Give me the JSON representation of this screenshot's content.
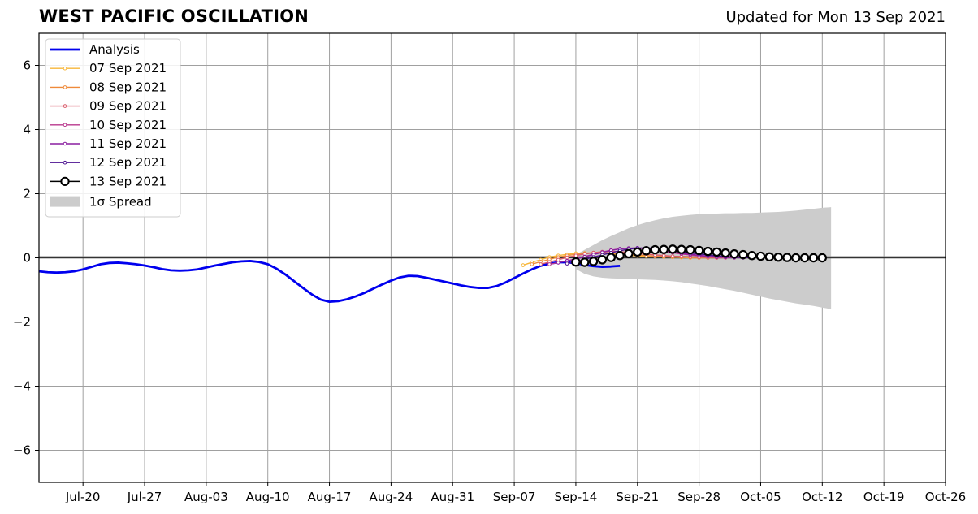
{
  "title": "WEST PACIFIC OSCILLATION",
  "subtitle": "Updated for Mon 13 Sep 2021",
  "chart_data": {
    "type": "line",
    "title": "WEST PACIFIC OSCILLATION",
    "xlabel": "",
    "ylabel": "",
    "x_range": [
      "2021-07-15",
      "2021-10-26"
    ],
    "ylim": [
      -7,
      7
    ],
    "grid": true,
    "legend_position": "top-left",
    "x_ticks": [
      "Jul-20",
      "Jul-27",
      "Aug-03",
      "Aug-10",
      "Aug-17",
      "Aug-24",
      "Aug-31",
      "Sep-07",
      "Sep-14",
      "Sep-21",
      "Sep-28",
      "Oct-05",
      "Oct-12",
      "Oct-19",
      "Oct-26"
    ],
    "x_tick_dates": [
      "2021-07-20",
      "2021-07-27",
      "2021-08-03",
      "2021-08-10",
      "2021-08-17",
      "2021-08-24",
      "2021-08-31",
      "2021-09-07",
      "2021-09-14",
      "2021-09-21",
      "2021-09-28",
      "2021-10-05",
      "2021-10-12",
      "2021-10-19",
      "2021-10-26"
    ],
    "y_ticks": [
      6,
      4,
      2,
      0,
      -2,
      -4,
      -6
    ],
    "y_tick_labels": [
      "6",
      "4",
      "2",
      "0",
      "−2",
      "−4",
      "−6"
    ],
    "series": [
      {
        "name": "Analysis",
        "color": "#0000ee",
        "start_date": "2021-07-15",
        "values": [
          -0.42,
          -0.45,
          -0.46,
          -0.45,
          -0.42,
          -0.36,
          -0.28,
          -0.2,
          -0.16,
          -0.15,
          -0.17,
          -0.2,
          -0.24,
          -0.29,
          -0.35,
          -0.39,
          -0.4,
          -0.39,
          -0.36,
          -0.3,
          -0.24,
          -0.19,
          -0.14,
          -0.11,
          -0.1,
          -0.13,
          -0.2,
          -0.34,
          -0.52,
          -0.73,
          -0.94,
          -1.14,
          -1.3,
          -1.37,
          -1.35,
          -1.29,
          -1.2,
          -1.09,
          -0.96,
          -0.83,
          -0.71,
          -0.61,
          -0.56,
          -0.57,
          -0.62,
          -0.68,
          -0.74,
          -0.8,
          -0.86,
          -0.91,
          -0.94,
          -0.94,
          -0.88,
          -0.77,
          -0.63,
          -0.49,
          -0.36,
          -0.25,
          -0.18,
          -0.14,
          -0.14,
          -0.17,
          -0.22,
          -0.26,
          -0.28,
          -0.27,
          -0.25
        ]
      },
      {
        "name": "07 Sep 2021",
        "color": "#f7b638",
        "start_date": "2021-09-08",
        "values": [
          -0.23,
          -0.14,
          -0.06,
          0.02,
          0.07,
          0.11,
          0.14,
          0.15,
          0.15,
          0.14,
          0.12,
          0.1,
          0.08,
          0.06,
          0.05,
          0.04,
          0.03,
          0.02,
          0.01,
          0.0,
          0.0,
          0.0
        ]
      },
      {
        "name": "08 Sep 2021",
        "color": "#ef8a3a",
        "start_date": "2021-09-09",
        "values": [
          -0.2,
          -0.12,
          -0.05,
          0.02,
          0.07,
          0.11,
          0.14,
          0.16,
          0.16,
          0.15,
          0.13,
          0.11,
          0.09,
          0.07,
          0.05,
          0.04,
          0.03,
          0.02,
          0.01,
          0.0,
          0.0,
          0.0
        ]
      },
      {
        "name": "09 Sep 2021",
        "color": "#da5a6a",
        "start_date": "2021-09-10",
        "values": [
          -0.2,
          -0.13,
          -0.06,
          0.01,
          0.07,
          0.12,
          0.16,
          0.19,
          0.2,
          0.19,
          0.17,
          0.14,
          0.12,
          0.09,
          0.07,
          0.05,
          0.04,
          0.03,
          0.02,
          0.01,
          0.0,
          0.0
        ]
      },
      {
        "name": "10 Sep 2021",
        "color": "#b8378c",
        "start_date": "2021-09-11",
        "values": [
          -0.2,
          -0.15,
          -0.09,
          -0.03,
          0.04,
          0.11,
          0.18,
          0.24,
          0.28,
          0.3,
          0.3,
          0.28,
          0.24,
          0.2,
          0.16,
          0.12,
          0.09,
          0.06,
          0.04,
          0.02,
          0.01,
          0.0
        ]
      },
      {
        "name": "11 Sep 2021",
        "color": "#8a1fa0",
        "start_date": "2021-09-12",
        "values": [
          -0.15,
          -0.1,
          -0.04,
          0.03,
          0.1,
          0.17,
          0.23,
          0.28,
          0.3,
          0.31,
          0.29,
          0.26,
          0.22,
          0.18,
          0.14,
          0.11,
          0.08,
          0.05,
          0.03,
          0.02,
          0.01,
          0.0
        ]
      },
      {
        "name": "12 Sep 2021",
        "color": "#4b1190",
        "start_date": "2021-09-13",
        "values": [
          -0.18,
          -0.12,
          -0.05,
          0.02,
          0.09,
          0.16,
          0.22,
          0.27,
          0.3,
          0.31,
          0.3,
          0.27,
          0.23,
          0.19,
          0.15,
          0.12,
          0.09,
          0.06,
          0.04,
          0.02,
          0.01,
          0.0
        ]
      },
      {
        "name": "13 Sep 2021",
        "color": "#000000",
        "start_date": "2021-09-14",
        "values": [
          -0.13,
          -0.14,
          -0.11,
          -0.06,
          0.01,
          0.07,
          0.13,
          0.18,
          0.22,
          0.25,
          0.26,
          0.27,
          0.26,
          0.25,
          0.23,
          0.2,
          0.18,
          0.15,
          0.12,
          0.1,
          0.07,
          0.05,
          0.03,
          0.02,
          0.01,
          0.0,
          0.0,
          0.0,
          0.0
        ]
      }
    ],
    "spread": {
      "name": "1σ Spread",
      "color": "#cccccc",
      "start_date": "2021-09-14",
      "upper": [
        0.1,
        0.25,
        0.4,
        0.55,
        0.68,
        0.8,
        0.92,
        1.02,
        1.1,
        1.17,
        1.23,
        1.28,
        1.31,
        1.34,
        1.36,
        1.37,
        1.38,
        1.39,
        1.39,
        1.4,
        1.4,
        1.41,
        1.42,
        1.43,
        1.45,
        1.47,
        1.5,
        1.53,
        1.56,
        1.58
      ],
      "lower": [
        -0.35,
        -0.5,
        -0.58,
        -0.62,
        -0.64,
        -0.65,
        -0.66,
        -0.67,
        -0.68,
        -0.69,
        -0.71,
        -0.73,
        -0.76,
        -0.8,
        -0.84,
        -0.88,
        -0.93,
        -0.98,
        -1.03,
        -1.09,
        -1.15,
        -1.21,
        -1.27,
        -1.32,
        -1.37,
        -1.42,
        -1.46,
        -1.5,
        -1.55,
        -1.6
      ]
    }
  }
}
